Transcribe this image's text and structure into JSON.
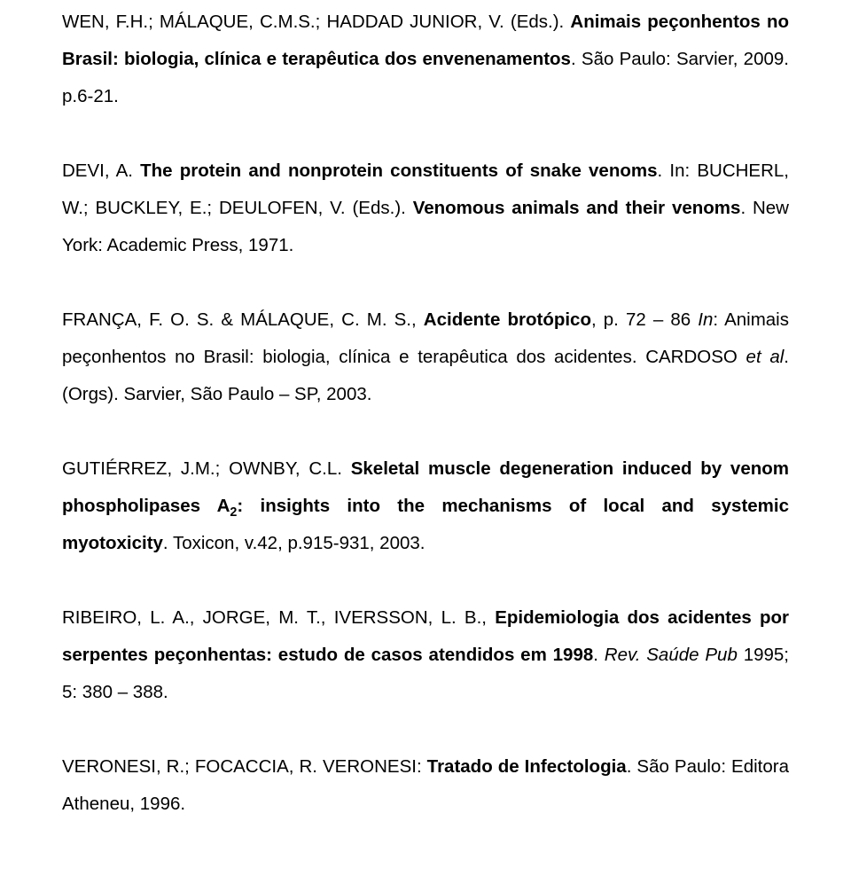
{
  "references": [
    {
      "segments": [
        {
          "t": "WEN, F.H.; MÁLAQUE, C.M.S.; HADDAD JUNIOR, V. (Eds.). "
        },
        {
          "t": "Animais peçonhentos no Brasil: biologia, clínica e terapêutica dos envenenamentos",
          "b": true
        },
        {
          "t": ". São Paulo: Sarvier, 2009. p.6-21."
        }
      ]
    },
    {
      "segments": [
        {
          "t": "DEVI, A. "
        },
        {
          "t": "The protein and nonprotein constituents of snake venoms",
          "b": true
        },
        {
          "t": ". In: BUCHERL, W.; BUCKLEY, E.; DEULOFEN, V. (Eds.). "
        },
        {
          "t": "Venomous animals and their venoms",
          "b": true
        },
        {
          "t": ". New York: Academic Press, 1971."
        }
      ]
    },
    {
      "segments": [
        {
          "t": "FRANÇA, F. O. S. & MÁLAQUE, C. M. S., "
        },
        {
          "t": "Acidente brotópico",
          "b": true
        },
        {
          "t": ", p. 72 – 86 "
        },
        {
          "t": "In",
          "i": true
        },
        {
          "t": ": Animais peçonhentos no Brasil: biologia, clínica e terapêutica dos acidentes. CARDOSO "
        },
        {
          "t": "et al",
          "i": true
        },
        {
          "t": ". (Orgs). Sarvier, São Paulo – SP, 2003."
        }
      ]
    },
    {
      "segments": [
        {
          "t": "GUTIÉRREZ, J.M.; OWNBY, C.L. "
        },
        {
          "t": "Skeletal muscle degeneration induced by venom phospholipases A",
          "b": true
        },
        {
          "t": "2",
          "b": true,
          "sub": true
        },
        {
          "t": ": insights into the mechanisms of local and systemic myotoxicity",
          "b": true
        },
        {
          "t": ". Toxicon, v.42, p.915-931, 2003."
        }
      ]
    },
    {
      "segments": [
        {
          "t": "RIBEIRO, L. A., JORGE, M. T., IVERSSON, L. B., "
        },
        {
          "t": "Epidemiologia dos acidentes por serpentes peçonhentas: estudo de casos atendidos em 1998",
          "b": true
        },
        {
          "t": ". "
        },
        {
          "t": "Rev. Saúde Pub",
          "i": true
        },
        {
          "t": " 1995; 5: 380 – 388."
        }
      ]
    },
    {
      "segments": [
        {
          "t": "VERONESI, R.; FOCACCIA, R. VERONESI: "
        },
        {
          "t": "Tratado de Infectologia",
          "b": true
        },
        {
          "t": ". São Paulo: Editora Atheneu, 1996."
        }
      ]
    }
  ]
}
